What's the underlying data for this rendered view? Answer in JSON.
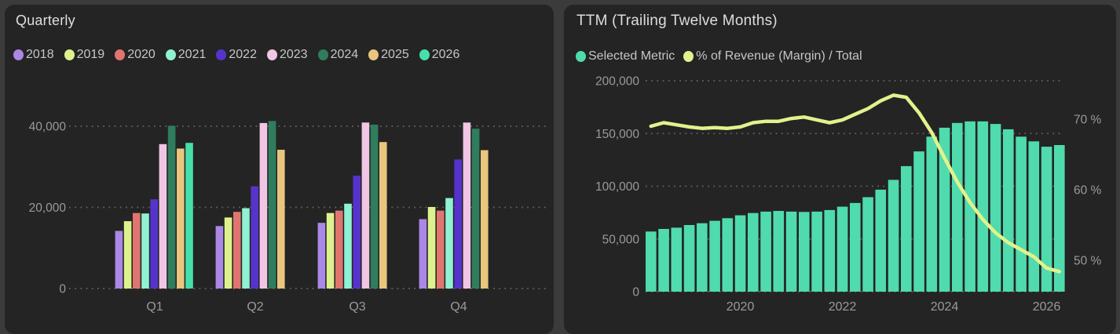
{
  "colors": {
    "page_bg": "#3b3b3b",
    "card_bg": "#242424",
    "title_text": "#dedede",
    "legend_text": "#c6c6c6",
    "axis_text": "#9a9a9a",
    "grid_dots": "#8c8c8c",
    "ttm_bar": "#4fdbad",
    "ttm_line": "#e2f28c"
  },
  "panels": {
    "quarterly": {
      "title": "Quarterly",
      "chart_data": {
        "type": "bar",
        "title": "Quarterly",
        "categories": [
          "Q1",
          "Q2",
          "Q3",
          "Q4"
        ],
        "series": [
          {
            "name": "2018",
            "color": "#ab87e6",
            "values": [
              14200,
              15400,
              16200,
              17100
            ]
          },
          {
            "name": "2019",
            "color": "#ddf28e",
            "values": [
              16600,
              17500,
              18600,
              20100
            ]
          },
          {
            "name": "2020",
            "color": "#e0756f",
            "values": [
              18600,
              18900,
              19200,
              19200
            ]
          },
          {
            "name": "2021",
            "color": "#8ff2d2",
            "values": [
              18500,
              19800,
              20900,
              22300
            ]
          },
          {
            "name": "2022",
            "color": "#5634cb",
            "values": [
              22000,
              25200,
              27800,
              31800
            ]
          },
          {
            "name": "2023",
            "color": "#f0c6e4",
            "values": [
              35600,
              40800,
              40900,
              40900
            ]
          },
          {
            "name": "2024",
            "color": "#2f7d5d",
            "values": [
              40100,
              41300,
              40400,
              39400
            ]
          },
          {
            "name": "2025",
            "color": "#e9c57e",
            "values": [
              34500,
              34200,
              36100,
              34100
            ]
          },
          {
            "name": "2026",
            "color": "#46dfa9",
            "values": [
              35900,
              null,
              null,
              null
            ]
          }
        ],
        "ylim": [
          0,
          44000
        ],
        "yticks": [
          {
            "value": 0,
            "label": "0"
          },
          {
            "value": 20000,
            "label": "20,000"
          },
          {
            "value": 40000,
            "label": "40,000"
          }
        ],
        "grid": "dotted-horizontal",
        "legend_position": "top"
      }
    },
    "ttm": {
      "title": "TTM (Trailing Twelve Months)",
      "legend": [
        {
          "label": "Selected Metric",
          "color": "#4fdbad"
        },
        {
          "label": "% of Revenue (Margin) / Total",
          "color": "#e2f28c"
        }
      ],
      "chart_data": {
        "type": "bar+line",
        "title": "TTM (Trailing Twelve Months)",
        "x": [
          "2018 Q2",
          "2018 Q3",
          "2018 Q4",
          "2019 Q1",
          "2019 Q2",
          "2019 Q3",
          "2019 Q4",
          "2020 Q1",
          "2020 Q2",
          "2020 Q3",
          "2020 Q4",
          "2021 Q1",
          "2021 Q2",
          "2021 Q3",
          "2021 Q4",
          "2022 Q1",
          "2022 Q2",
          "2022 Q3",
          "2022 Q4",
          "2023 Q1",
          "2023 Q2",
          "2023 Q3",
          "2023 Q4",
          "2024 Q1",
          "2024 Q2",
          "2024 Q3",
          "2024 Q4",
          "2025 Q1",
          "2025 Q2",
          "2025 Q3",
          "2025 Q4",
          "2026 Q1",
          "2026 Q2"
        ],
        "bar_series": {
          "name": "Selected Metric",
          "color": "#4fdbad",
          "axis": "left",
          "values": [
            57000,
            59500,
            60700,
            63200,
            64900,
            67200,
            69700,
            72400,
            74600,
            75900,
            76600,
            75900,
            75600,
            75900,
            77400,
            80600,
            84100,
            89600,
            96700,
            106000,
            119000,
            133000,
            147000,
            155500,
            160000,
            161500,
            161500,
            159000,
            154000,
            147000,
            142500,
            137500,
            139000
          ]
        },
        "line_series": {
          "name": "% of Revenue (Margin) / Total",
          "color": "#e2f28c",
          "axis": "right",
          "values": [
            69.0,
            69.5,
            69.2,
            68.9,
            68.7,
            68.8,
            68.7,
            68.9,
            69.5,
            69.7,
            69.7,
            70.1,
            70.3,
            69.9,
            69.5,
            69.9,
            70.7,
            71.5,
            72.6,
            73.4,
            73.1,
            70.9,
            68.1,
            64.5,
            61.1,
            58.2,
            55.8,
            53.9,
            52.5,
            51.5,
            50.5,
            48.9,
            48.4
          ]
        },
        "left_ylim": [
          0,
          202000
        ],
        "left_yticks": [
          {
            "value": 0,
            "label": "0"
          },
          {
            "value": 50000,
            "label": "50,000"
          },
          {
            "value": 100000,
            "label": "100,000"
          },
          {
            "value": 150000,
            "label": "150,000"
          },
          {
            "value": 200000,
            "label": "200,000"
          }
        ],
        "right_yticks": [
          {
            "value": 50,
            "label": "50 %"
          },
          {
            "value": 60,
            "label": "60 %"
          },
          {
            "value": 70,
            "label": "70 %"
          }
        ],
        "xticks": [
          {
            "index": 7,
            "label": "2020"
          },
          {
            "index": 15,
            "label": "2022"
          },
          {
            "index": 23,
            "label": "2024"
          },
          {
            "index": 31,
            "label": "2026"
          }
        ],
        "grid": "dotted-horizontal",
        "legend_position": "top"
      }
    }
  }
}
